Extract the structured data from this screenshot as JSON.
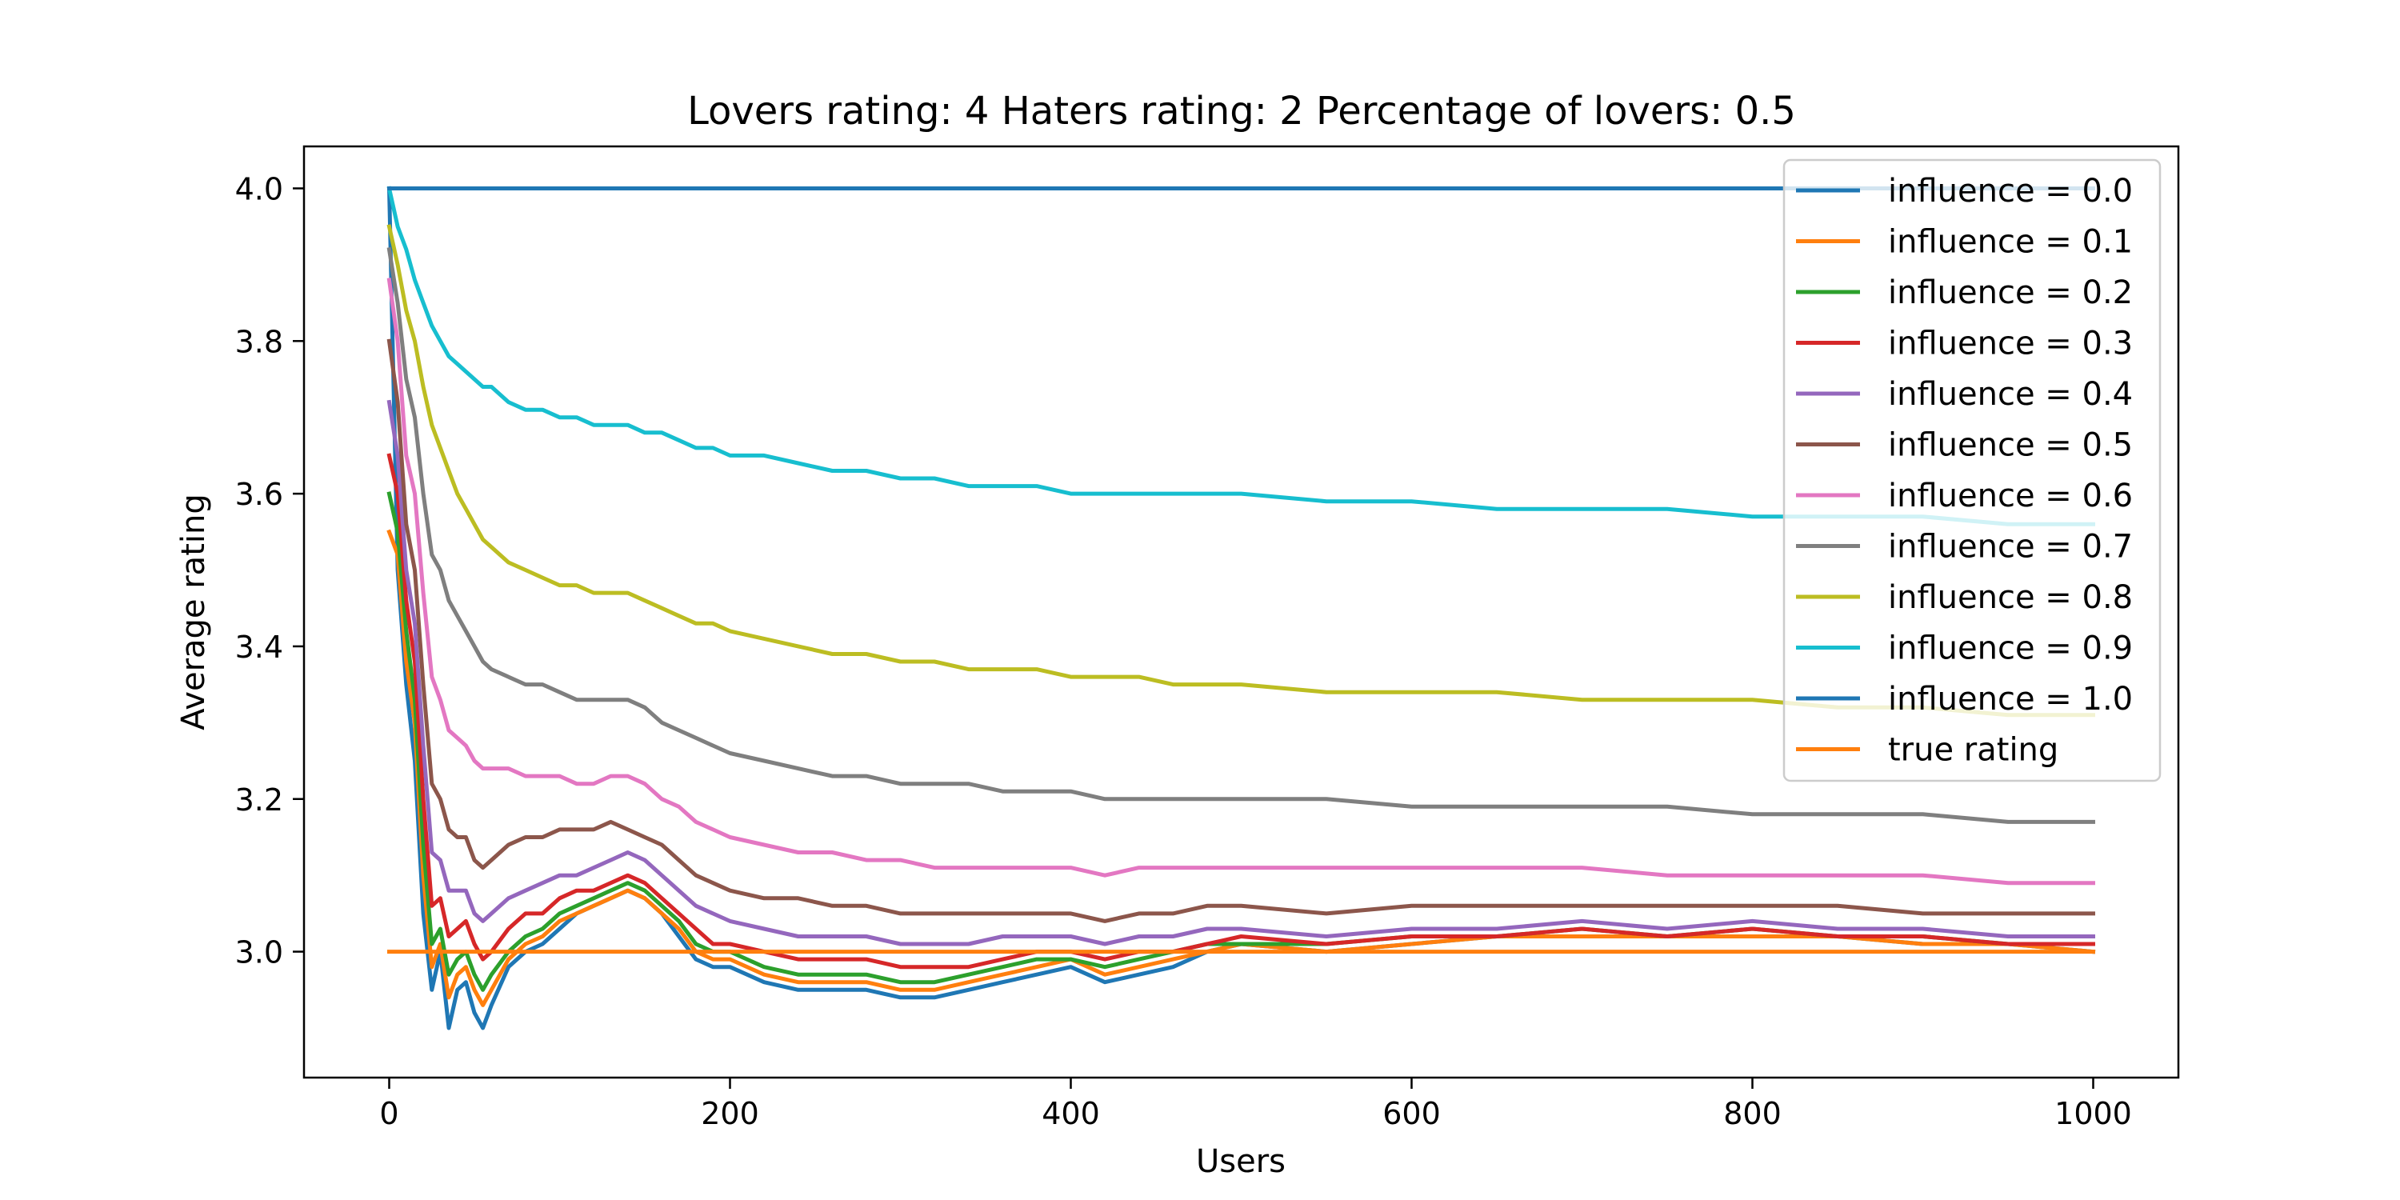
{
  "chart_data": {
    "type": "line",
    "title": "Lovers rating: 4 Haters rating: 2 Percentage of lovers: 0.5",
    "xlabel": "Users",
    "ylabel": "Average rating",
    "xlim": [
      -50,
      1050
    ],
    "ylim": [
      2.835,
      4.055
    ],
    "xticks": [
      0,
      200,
      400,
      600,
      800,
      1000
    ],
    "yticks": [
      3.0,
      3.2,
      3.4,
      3.6,
      3.8,
      4.0
    ],
    "xtick_labels": [
      "0",
      "200",
      "400",
      "600",
      "800",
      "1000"
    ],
    "ytick_labels": [
      "3.0",
      "3.2",
      "3.4",
      "3.6",
      "3.8",
      "4.0"
    ],
    "grid": false,
    "legend_position": "top-right",
    "series": [
      {
        "name": "influence = 0.0",
        "color": "#1f77b4",
        "x": [
          0,
          5,
          10,
          15,
          20,
          25,
          30,
          35,
          40,
          45,
          50,
          55,
          60,
          70,
          80,
          90,
          100,
          110,
          120,
          130,
          140,
          150,
          160,
          170,
          180,
          190,
          200,
          220,
          240,
          260,
          280,
          300,
          320,
          340,
          360,
          380,
          400,
          420,
          440,
          460,
          480,
          500,
          550,
          600,
          650,
          700,
          750,
          800,
          850,
          900,
          950,
          1000
        ],
        "y": [
          4.0,
          3.5,
          3.35,
          3.25,
          3.05,
          2.95,
          3.0,
          2.9,
          2.95,
          2.96,
          2.92,
          2.9,
          2.93,
          2.98,
          3.0,
          3.01,
          3.03,
          3.05,
          3.06,
          3.07,
          3.08,
          3.07,
          3.05,
          3.02,
          2.99,
          2.98,
          2.98,
          2.96,
          2.95,
          2.95,
          2.95,
          2.94,
          2.94,
          2.95,
          2.96,
          2.97,
          2.98,
          2.96,
          2.97,
          2.98,
          3.0,
          3.01,
          3.0,
          3.01,
          3.02,
          3.02,
          3.02,
          3.02,
          3.02,
          3.01,
          3.01,
          3.0
        ]
      },
      {
        "name": "influence = 0.1",
        "color": "#ff7f0e",
        "x": [
          0,
          5,
          10,
          15,
          20,
          25,
          30,
          35,
          40,
          45,
          50,
          55,
          60,
          70,
          80,
          90,
          100,
          110,
          120,
          130,
          140,
          150,
          160,
          170,
          180,
          190,
          200,
          220,
          240,
          260,
          280,
          300,
          320,
          340,
          360,
          380,
          400,
          420,
          440,
          460,
          480,
          500,
          550,
          600,
          650,
          700,
          750,
          800,
          850,
          900,
          950,
          1000
        ],
        "y": [
          3.55,
          3.52,
          3.38,
          3.3,
          3.1,
          2.98,
          3.01,
          2.94,
          2.97,
          2.98,
          2.95,
          2.93,
          2.95,
          2.99,
          3.01,
          3.02,
          3.04,
          3.05,
          3.06,
          3.07,
          3.08,
          3.07,
          3.05,
          3.03,
          3.0,
          2.99,
          2.99,
          2.97,
          2.96,
          2.96,
          2.96,
          2.95,
          2.95,
          2.96,
          2.97,
          2.98,
          2.99,
          2.97,
          2.98,
          2.99,
          3.0,
          3.01,
          3.0,
          3.01,
          3.02,
          3.02,
          3.02,
          3.02,
          3.02,
          3.01,
          3.01,
          3.0
        ]
      },
      {
        "name": "influence = 0.2",
        "color": "#2ca02c",
        "x": [
          0,
          5,
          10,
          15,
          20,
          25,
          30,
          35,
          40,
          45,
          50,
          55,
          60,
          70,
          80,
          90,
          100,
          110,
          120,
          130,
          140,
          150,
          160,
          170,
          180,
          190,
          200,
          220,
          240,
          260,
          280,
          300,
          320,
          340,
          360,
          380,
          400,
          420,
          440,
          460,
          480,
          500,
          550,
          600,
          650,
          700,
          750,
          800,
          850,
          900,
          950,
          1000
        ],
        "y": [
          3.6,
          3.55,
          3.42,
          3.33,
          3.14,
          3.01,
          3.03,
          2.97,
          2.99,
          3.0,
          2.97,
          2.95,
          2.97,
          3.0,
          3.02,
          3.03,
          3.05,
          3.06,
          3.07,
          3.08,
          3.09,
          3.08,
          3.06,
          3.04,
          3.01,
          3.0,
          3.0,
          2.98,
          2.97,
          2.97,
          2.97,
          2.96,
          2.96,
          2.97,
          2.98,
          2.99,
          2.99,
          2.98,
          2.99,
          3.0,
          3.01,
          3.01,
          3.01,
          3.02,
          3.02,
          3.03,
          3.02,
          3.03,
          3.02,
          3.02,
          3.01,
          3.01
        ]
      },
      {
        "name": "influence = 0.3",
        "color": "#d62728",
        "x": [
          0,
          5,
          10,
          15,
          20,
          25,
          30,
          35,
          40,
          45,
          50,
          55,
          60,
          70,
          80,
          90,
          100,
          110,
          120,
          130,
          140,
          150,
          160,
          170,
          180,
          190,
          200,
          220,
          240,
          260,
          280,
          300,
          320,
          340,
          360,
          380,
          400,
          420,
          440,
          460,
          480,
          500,
          550,
          600,
          650,
          700,
          750,
          800,
          850,
          900,
          950,
          1000
        ],
        "y": [
          3.65,
          3.6,
          3.46,
          3.38,
          3.2,
          3.06,
          3.07,
          3.02,
          3.03,
          3.04,
          3.01,
          2.99,
          3.0,
          3.03,
          3.05,
          3.05,
          3.07,
          3.08,
          3.08,
          3.09,
          3.1,
          3.09,
          3.07,
          3.05,
          3.03,
          3.01,
          3.01,
          3.0,
          2.99,
          2.99,
          2.99,
          2.98,
          2.98,
          2.98,
          2.99,
          3.0,
          3.0,
          2.99,
          3.0,
          3.0,
          3.01,
          3.02,
          3.01,
          3.02,
          3.02,
          3.03,
          3.02,
          3.03,
          3.02,
          3.02,
          3.01,
          3.01
        ]
      },
      {
        "name": "influence = 0.4",
        "color": "#9467bd",
        "x": [
          0,
          5,
          10,
          15,
          20,
          25,
          30,
          35,
          40,
          45,
          50,
          55,
          60,
          70,
          80,
          90,
          100,
          110,
          120,
          130,
          140,
          150,
          160,
          170,
          180,
          190,
          200,
          220,
          240,
          260,
          280,
          300,
          320,
          340,
          360,
          380,
          400,
          420,
          440,
          460,
          480,
          500,
          550,
          600,
          650,
          700,
          750,
          800,
          850,
          900,
          950,
          1000
        ],
        "y": [
          3.72,
          3.65,
          3.5,
          3.43,
          3.27,
          3.13,
          3.12,
          3.08,
          3.08,
          3.08,
          3.05,
          3.04,
          3.05,
          3.07,
          3.08,
          3.09,
          3.1,
          3.1,
          3.11,
          3.12,
          3.13,
          3.12,
          3.1,
          3.08,
          3.06,
          3.05,
          3.04,
          3.03,
          3.02,
          3.02,
          3.02,
          3.01,
          3.01,
          3.01,
          3.02,
          3.02,
          3.02,
          3.01,
          3.02,
          3.02,
          3.03,
          3.03,
          3.02,
          3.03,
          3.03,
          3.04,
          3.03,
          3.04,
          3.03,
          3.03,
          3.02,
          3.02
        ]
      },
      {
        "name": "influence = 0.5",
        "color": "#8c564b",
        "x": [
          0,
          5,
          10,
          15,
          20,
          25,
          30,
          35,
          40,
          45,
          50,
          55,
          60,
          70,
          80,
          90,
          100,
          110,
          120,
          130,
          140,
          150,
          160,
          170,
          180,
          190,
          200,
          220,
          240,
          260,
          280,
          300,
          320,
          340,
          360,
          380,
          400,
          420,
          440,
          460,
          480,
          500,
          550,
          600,
          650,
          700,
          750,
          800,
          850,
          900,
          950,
          1000
        ],
        "y": [
          3.8,
          3.72,
          3.56,
          3.5,
          3.35,
          3.22,
          3.2,
          3.16,
          3.15,
          3.15,
          3.12,
          3.11,
          3.12,
          3.14,
          3.15,
          3.15,
          3.16,
          3.16,
          3.16,
          3.17,
          3.16,
          3.15,
          3.14,
          3.12,
          3.1,
          3.09,
          3.08,
          3.07,
          3.07,
          3.06,
          3.06,
          3.05,
          3.05,
          3.05,
          3.05,
          3.05,
          3.05,
          3.04,
          3.05,
          3.05,
          3.06,
          3.06,
          3.05,
          3.06,
          3.06,
          3.06,
          3.06,
          3.06,
          3.06,
          3.05,
          3.05,
          3.05
        ]
      },
      {
        "name": "influence = 0.6",
        "color": "#e377c2",
        "x": [
          0,
          5,
          10,
          15,
          20,
          25,
          30,
          35,
          40,
          45,
          50,
          55,
          60,
          70,
          80,
          90,
          100,
          110,
          120,
          130,
          140,
          150,
          160,
          170,
          180,
          190,
          200,
          220,
          240,
          260,
          280,
          300,
          320,
          340,
          360,
          380,
          400,
          420,
          440,
          460,
          480,
          500,
          550,
          600,
          650,
          700,
          750,
          800,
          850,
          900,
          950,
          1000
        ],
        "y": [
          3.88,
          3.8,
          3.65,
          3.6,
          3.47,
          3.36,
          3.33,
          3.29,
          3.28,
          3.27,
          3.25,
          3.24,
          3.24,
          3.24,
          3.23,
          3.23,
          3.23,
          3.22,
          3.22,
          3.23,
          3.23,
          3.22,
          3.2,
          3.19,
          3.17,
          3.16,
          3.15,
          3.14,
          3.13,
          3.13,
          3.12,
          3.12,
          3.11,
          3.11,
          3.11,
          3.11,
          3.11,
          3.1,
          3.11,
          3.11,
          3.11,
          3.11,
          3.11,
          3.11,
          3.11,
          3.11,
          3.1,
          3.1,
          3.1,
          3.1,
          3.09,
          3.09
        ]
      },
      {
        "name": "influence = 0.7",
        "color": "#7f7f7f",
        "x": [
          0,
          5,
          10,
          15,
          20,
          25,
          30,
          35,
          40,
          45,
          50,
          55,
          60,
          70,
          80,
          90,
          100,
          110,
          120,
          130,
          140,
          150,
          160,
          170,
          180,
          190,
          200,
          220,
          240,
          260,
          280,
          300,
          320,
          340,
          360,
          380,
          400,
          420,
          440,
          460,
          480,
          500,
          550,
          600,
          650,
          700,
          750,
          800,
          850,
          900,
          950,
          1000
        ],
        "y": [
          3.92,
          3.85,
          3.75,
          3.7,
          3.6,
          3.52,
          3.5,
          3.46,
          3.44,
          3.42,
          3.4,
          3.38,
          3.37,
          3.36,
          3.35,
          3.35,
          3.34,
          3.33,
          3.33,
          3.33,
          3.33,
          3.32,
          3.3,
          3.29,
          3.28,
          3.27,
          3.26,
          3.25,
          3.24,
          3.23,
          3.23,
          3.22,
          3.22,
          3.22,
          3.21,
          3.21,
          3.21,
          3.2,
          3.2,
          3.2,
          3.2,
          3.2,
          3.2,
          3.19,
          3.19,
          3.19,
          3.19,
          3.18,
          3.18,
          3.18,
          3.17,
          3.17
        ]
      },
      {
        "name": "influence = 0.8",
        "color": "#bcbd22",
        "x": [
          0,
          5,
          10,
          15,
          20,
          25,
          30,
          35,
          40,
          45,
          50,
          55,
          60,
          70,
          80,
          90,
          100,
          110,
          120,
          130,
          140,
          150,
          160,
          170,
          180,
          190,
          200,
          220,
          240,
          260,
          280,
          300,
          320,
          340,
          360,
          380,
          400,
          420,
          440,
          460,
          480,
          500,
          550,
          600,
          650,
          700,
          750,
          800,
          850,
          900,
          950,
          1000
        ],
        "y": [
          3.95,
          3.9,
          3.84,
          3.8,
          3.74,
          3.69,
          3.66,
          3.63,
          3.6,
          3.58,
          3.56,
          3.54,
          3.53,
          3.51,
          3.5,
          3.49,
          3.48,
          3.48,
          3.47,
          3.47,
          3.47,
          3.46,
          3.45,
          3.44,
          3.43,
          3.43,
          3.42,
          3.41,
          3.4,
          3.39,
          3.39,
          3.38,
          3.38,
          3.37,
          3.37,
          3.37,
          3.36,
          3.36,
          3.36,
          3.35,
          3.35,
          3.35,
          3.34,
          3.34,
          3.34,
          3.33,
          3.33,
          3.33,
          3.32,
          3.32,
          3.31,
          3.31
        ]
      },
      {
        "name": "influence = 0.9",
        "color": "#17becf",
        "x": [
          0,
          5,
          10,
          15,
          20,
          25,
          30,
          35,
          40,
          45,
          50,
          55,
          60,
          70,
          80,
          90,
          100,
          110,
          120,
          130,
          140,
          150,
          160,
          170,
          180,
          190,
          200,
          220,
          240,
          260,
          280,
          300,
          320,
          340,
          360,
          380,
          400,
          420,
          440,
          460,
          480,
          500,
          550,
          600,
          650,
          700,
          750,
          800,
          850,
          900,
          950,
          1000
        ],
        "y": [
          4.0,
          3.95,
          3.92,
          3.88,
          3.85,
          3.82,
          3.8,
          3.78,
          3.77,
          3.76,
          3.75,
          3.74,
          3.74,
          3.72,
          3.71,
          3.71,
          3.7,
          3.7,
          3.69,
          3.69,
          3.69,
          3.68,
          3.68,
          3.67,
          3.66,
          3.66,
          3.65,
          3.65,
          3.64,
          3.63,
          3.63,
          3.62,
          3.62,
          3.61,
          3.61,
          3.61,
          3.6,
          3.6,
          3.6,
          3.6,
          3.6,
          3.6,
          3.59,
          3.59,
          3.58,
          3.58,
          3.58,
          3.57,
          3.57,
          3.57,
          3.56,
          3.56
        ]
      },
      {
        "name": "influence = 1.0",
        "color": "#1f77b4",
        "x": [
          0,
          1000
        ],
        "y": [
          4.0,
          4.0
        ]
      },
      {
        "name": "true rating",
        "color": "#ff7f0e",
        "x": [
          0,
          1000
        ],
        "y": [
          3.0,
          3.0
        ]
      }
    ]
  }
}
